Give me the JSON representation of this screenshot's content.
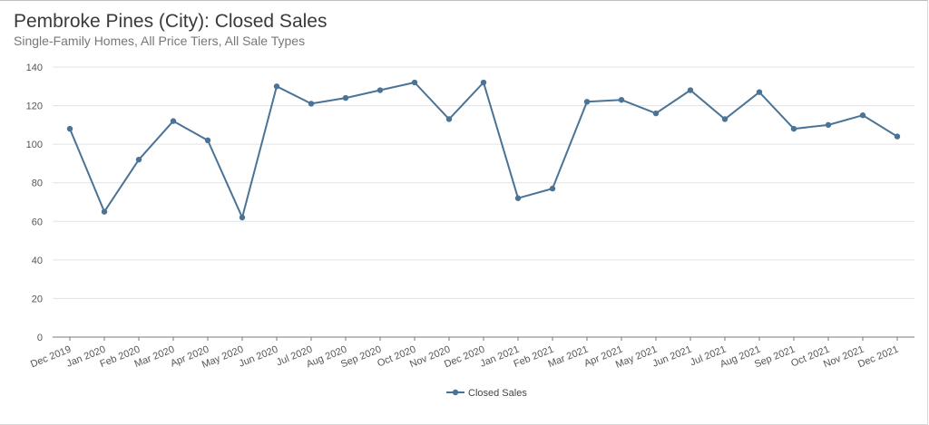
{
  "title": "Pembroke Pines (City): Closed Sales",
  "subtitle": "Single-Family Homes, All Price Tiers, All Sale Types",
  "colors": {
    "series": "#4a7396",
    "grid": "#e3e3e3",
    "axis": "#7a7a7a"
  },
  "chart_data": {
    "type": "line",
    "title": "Pembroke Pines (City): Closed Sales",
    "subtitle": "Single-Family Homes, All Price Tiers, All Sale Types",
    "xlabel": "",
    "ylabel": "",
    "ylim": [
      0,
      140
    ],
    "yticks": [
      0,
      20,
      40,
      60,
      80,
      100,
      120,
      140
    ],
    "grid": true,
    "legend": "bottom-center",
    "categories": [
      "Dec 2019",
      "Jan 2020",
      "Feb 2020",
      "Mar 2020",
      "Apr 2020",
      "May 2020",
      "Jun 2020",
      "Jul 2020",
      "Aug 2020",
      "Sep 2020",
      "Oct 2020",
      "Nov 2020",
      "Dec 2020",
      "Jan 2021",
      "Feb 2021",
      "Mar 2021",
      "Apr 2021",
      "May 2021",
      "Jun 2021",
      "Jul 2021",
      "Aug 2021",
      "Sep 2021",
      "Oct 2021",
      "Nov 2021",
      "Dec 2021"
    ],
    "series": [
      {
        "name": "Closed Sales",
        "values": [
          108,
          65,
          92,
          112,
          102,
          62,
          130,
          121,
          124,
          128,
          132,
          113,
          132,
          72,
          77,
          122,
          123,
          116,
          128,
          113,
          127,
          108,
          110,
          115,
          104
        ]
      }
    ]
  }
}
